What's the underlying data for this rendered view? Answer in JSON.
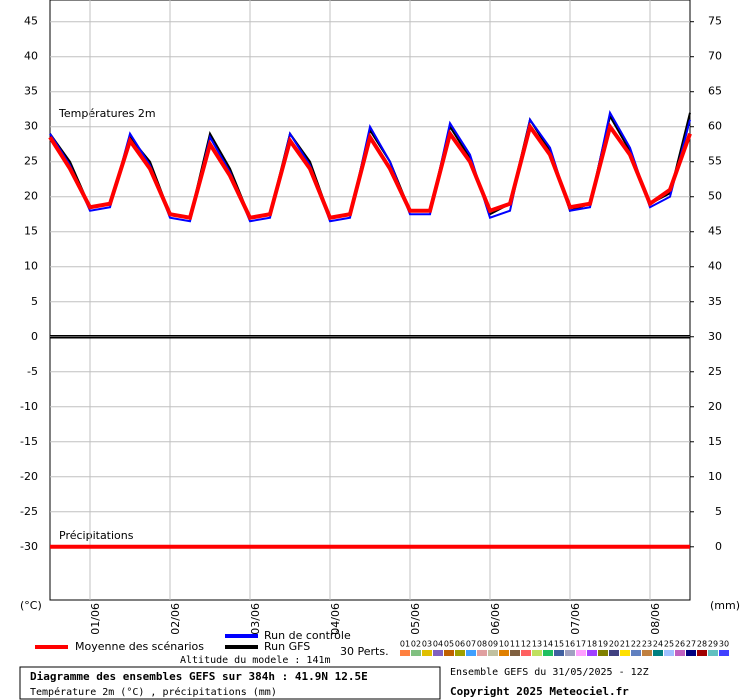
{
  "chart_data": {
    "type": "line",
    "title": "Diagramme des ensembles GEFS sur 384h : 41.9N 12.5E",
    "subtitle": "Température 2m (°C) , précipitations (mm)",
    "altitude": "Altitude du modele : 141m",
    "run_info": "Ensemble GEFS du 31/05/2025 - 12Z",
    "copyright": "Copyright 2025 Meteociel.fr",
    "temp_label": "Températures 2m",
    "precip_label": "Précipitations",
    "y_unit": "(°C)",
    "y2_unit": "(mm)",
    "perts_label": "30 Perts.",
    "grid": true,
    "x": [
      0,
      6,
      12,
      18,
      24,
      30,
      36,
      42,
      48,
      54,
      60,
      66,
      72,
      78,
      84,
      90,
      96,
      102,
      108,
      114,
      120,
      126,
      132,
      138,
      144,
      150,
      156,
      162,
      168,
      174,
      180,
      186,
      192
    ],
    "xlim": [
      0,
      192
    ],
    "xticks": [
      {
        "value": 12,
        "label": "01/06"
      },
      {
        "value": 36,
        "label": "02/06"
      },
      {
        "value": 60,
        "label": "03/06"
      },
      {
        "value": 84,
        "label": "04/06"
      },
      {
        "value": 108,
        "label": "05/06"
      },
      {
        "value": 132,
        "label": "06/06"
      },
      {
        "value": 156,
        "label": "07/06"
      },
      {
        "value": 180,
        "label": "08/06"
      }
    ],
    "ylim": [
      -37.6,
      48.1
    ],
    "yticks": [
      -30,
      -25,
      -20,
      -15,
      -10,
      -5,
      0,
      5,
      10,
      15,
      20,
      25,
      30,
      35,
      40,
      45
    ],
    "y2lim": [
      -7.6,
      78.1
    ],
    "y2ticks": [
      0,
      5,
      10,
      15,
      20,
      25,
      30,
      35,
      40,
      45,
      50,
      55,
      60,
      65,
      70,
      75
    ],
    "series": [
      {
        "name": "Moyenne des scénarios",
        "color": "#ff0000",
        "values": [
          28.5,
          24,
          18.5,
          19,
          28,
          24,
          17.5,
          17,
          27.5,
          23,
          17,
          17.5,
          28,
          24,
          17,
          17.5,
          28.5,
          24,
          18,
          18,
          29,
          25,
          18,
          19,
          30,
          26,
          18.5,
          19,
          30,
          26,
          19,
          21,
          29
        ]
      },
      {
        "name": "Run de contrôle",
        "color": "#0000ff",
        "values": [
          29,
          24.5,
          18,
          18.5,
          29,
          24.5,
          17,
          16.5,
          28.5,
          23.5,
          16.5,
          17,
          29,
          24.5,
          16.5,
          17,
          30,
          25,
          17.5,
          17.5,
          30.5,
          26,
          17,
          18,
          31,
          27,
          18,
          18.5,
          32,
          27,
          18.5,
          20,
          31
        ]
      },
      {
        "name": "Run GFS",
        "color": "#000000",
        "values": [
          29,
          25,
          18.5,
          19,
          28.5,
          25,
          17.5,
          17,
          29,
          24,
          17,
          17.5,
          29,
          25,
          17,
          17.5,
          29.5,
          25,
          18,
          18,
          30,
          25.5,
          17.5,
          19,
          31,
          26.5,
          18,
          19,
          31.5,
          26.5,
          19,
          20.5,
          32
        ]
      }
    ],
    "precipitation": {
      "axis": "y2",
      "color": "#ff0000",
      "values": [
        0,
        0,
        0,
        0,
        0,
        0,
        0,
        0,
        0,
        0,
        0,
        0,
        0,
        0,
        0,
        0,
        0,
        0,
        0,
        0,
        0,
        0,
        0,
        0,
        0,
        0,
        0,
        0,
        0,
        0,
        0,
        0,
        0
      ]
    },
    "perturbations": [
      {
        "label": "01",
        "color": "#ff8040"
      },
      {
        "label": "02",
        "color": "#80c080"
      },
      {
        "label": "03",
        "color": "#e0c000"
      },
      {
        "label": "04",
        "color": "#8060c0"
      },
      {
        "label": "05",
        "color": "#c06000"
      },
      {
        "label": "06",
        "color": "#a0a000"
      },
      {
        "label": "07",
        "color": "#40a0ff"
      },
      {
        "label": "08",
        "color": "#e0a0a0"
      },
      {
        "label": "09",
        "color": "#c0c0a0"
      },
      {
        "label": "10",
        "color": "#e08000"
      },
      {
        "label": "11",
        "color": "#806040"
      },
      {
        "label": "12",
        "color": "#ff6060"
      },
      {
        "label": "13",
        "color": "#c0e060"
      },
      {
        "label": "14",
        "color": "#20c060"
      },
      {
        "label": "15",
        "color": "#4060a0"
      },
      {
        "label": "16",
        "color": "#a0a0c0"
      },
      {
        "label": "17",
        "color": "#ffa0ff"
      },
      {
        "label": "18",
        "color": "#a040ff"
      },
      {
        "label": "19",
        "color": "#808000"
      },
      {
        "label": "20",
        "color": "#404080"
      },
      {
        "label": "21",
        "color": "#ffe000"
      },
      {
        "label": "22",
        "color": "#6080c0"
      },
      {
        "label": "23",
        "color": "#c08040"
      },
      {
        "label": "24",
        "color": "#008080"
      },
      {
        "label": "25",
        "color": "#a0c0ff"
      },
      {
        "label": "26",
        "color": "#c060c0"
      },
      {
        "label": "27",
        "color": "#000080"
      },
      {
        "label": "28",
        "color": "#a00000"
      },
      {
        "label": "29",
        "color": "#60c0c0"
      },
      {
        "label": "30",
        "color": "#4040ff"
      }
    ]
  }
}
